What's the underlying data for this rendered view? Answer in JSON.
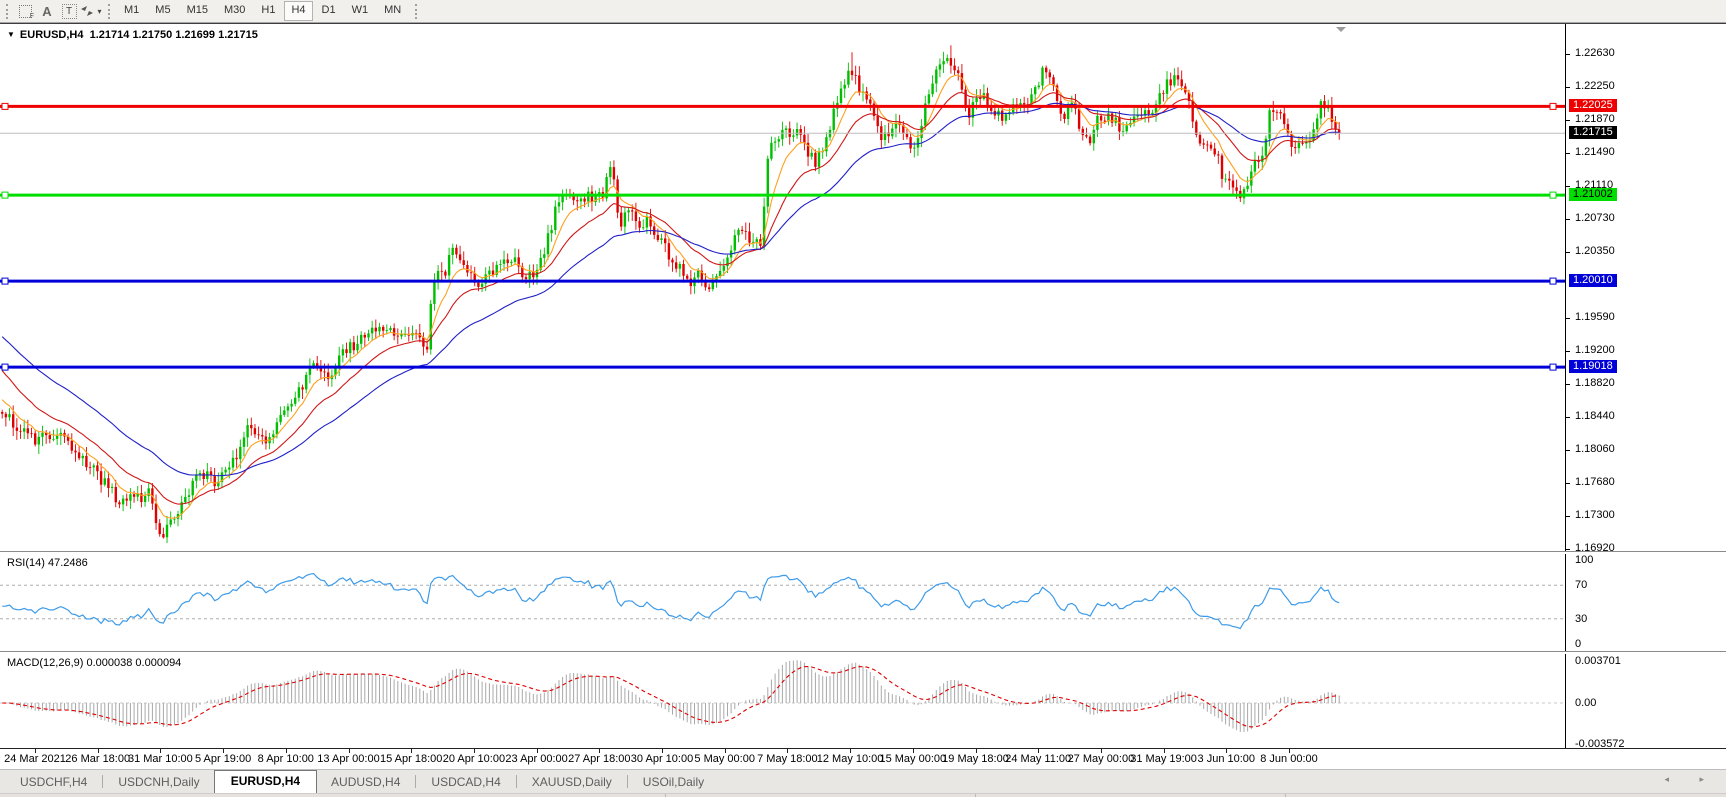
{
  "toolbar": {
    "icons": [
      "grid-f-icon",
      "font-icon",
      "text-label-icon",
      "cursor-mode-icon"
    ],
    "font_icon_glyph": "A",
    "text_icon_glyph": "T",
    "grid_icon_sub": "F",
    "timeframes": [
      "M1",
      "M5",
      "M15",
      "M30",
      "H1",
      "H4",
      "D1",
      "W1",
      "MN"
    ],
    "active_timeframe": "H4"
  },
  "header": {
    "symbol_period": "EURUSD,H4",
    "ohlc": "1.21714 1.21750 1.21699 1.21715",
    "dropdown_glyph": "▼"
  },
  "rsi": {
    "name": "RSI(14)",
    "value": "47.2486",
    "levels": [
      {
        "t": "100",
        "v": 100
      },
      {
        "t": "70",
        "v": 70
      },
      {
        "t": "30",
        "v": 30
      },
      {
        "t": "0",
        "v": 0
      }
    ],
    "line_color": "#3E9BE9"
  },
  "macd": {
    "name": "MACD(12,26,9)",
    "values": "0.000038 0.000094",
    "axis": [
      {
        "t": "0.003701",
        "v": 0.003701
      },
      {
        "t": "0.00",
        "v": 0
      },
      {
        "t": "-0.003572",
        "v": -0.003572
      }
    ],
    "histogram_color": "#A8A8A8",
    "signal_color": "#E00000"
  },
  "time_axis": [
    "24 Mar 2021",
    "26 Mar 18:00",
    "31 Mar 10:00",
    "5 Apr 19:00",
    "8 Apr 10:00",
    "13 Apr 00:00",
    "15 Apr 18:00",
    "20 Apr 10:00",
    "23 Apr 00:00",
    "27 Apr 18:00",
    "30 Apr 10:00",
    "5 May 00:00",
    "7 May 18:00",
    "12 May 10:00",
    "15 May 00:00",
    "19 May 18:00",
    "24 May 11:00",
    "27 May 00:00",
    "31 May 19:00",
    "3 Jun 10:00",
    "8 Jun 00:00"
  ],
  "tabs": [
    {
      "label": "USDCHF,H4",
      "active": false
    },
    {
      "label": "USDCNH,Daily",
      "active": false
    },
    {
      "label": "EURUSD,H4",
      "active": true
    },
    {
      "label": "AUDUSD,H4",
      "active": false
    },
    {
      "label": "USDCAD,H4",
      "active": false
    },
    {
      "label": "XAUUSD,Daily",
      "active": false
    },
    {
      "label": "USOil,Daily",
      "active": false
    }
  ],
  "tab_arrows": "◂ ▸",
  "chart_data": {
    "type": "candlestick",
    "symbol": "EURUSD",
    "timeframe": "H4",
    "current": {
      "open": 1.21714,
      "high": 1.2175,
      "low": 1.21699,
      "close": 1.21715
    },
    "bars": 366,
    "up_color": "#00BE00",
    "down_color": "#E00000",
    "ma_lines": [
      {
        "name": "ma-fast",
        "color": "#FFA01E",
        "period": 8,
        "seed": 1.1869
      },
      {
        "name": "ma-mid",
        "color": "#D01818",
        "period": 20,
        "seed": 1.1903
      },
      {
        "name": "ma-slow",
        "color": "#2020C8",
        "period": 45,
        "seed": 1.1941
      }
    ],
    "price_axis": {
      "max_price": 1.2263,
      "min_price": 1.1692,
      "labels": [
        "1.22630",
        "1.22250",
        "1.21870",
        "1.21490",
        "1.21110",
        "1.20730",
        "1.20350",
        "1.19590",
        "1.19200",
        "1.18820",
        "1.18440",
        "1.18060",
        "1.17680",
        "1.17300",
        "1.16920"
      ]
    },
    "hlines": [
      {
        "price": 1.22025,
        "label": "1.22025",
        "color": "#EE0000",
        "badge_bg": "#EE0000",
        "badge_fg": "#ffffff",
        "width": 3
      },
      {
        "price": 1.21002,
        "label": "1.21002",
        "color": "#00DD00",
        "badge_bg": "#00DD00",
        "badge_fg": "#000000",
        "width": 3
      },
      {
        "price": 1.2001,
        "label": "1.20010",
        "color": "#0000D8",
        "badge_bg": "#0000D8",
        "badge_fg": "#ffffff",
        "width": 3
      },
      {
        "price": 1.19018,
        "label": "1.19018",
        "color": "#0000D8",
        "badge_bg": "#0000D8",
        "badge_fg": "#ffffff",
        "width": 3
      }
    ],
    "current_line": {
      "price": 1.21715,
      "label": "1.21715",
      "color": "#BDBDBD",
      "badge_bg": "#000000",
      "badge_fg": "#ffffff"
    },
    "extremes": {
      "low_bar": 44,
      "low": 1.1704,
      "high_bar": 259,
      "high": 1.2273,
      "high2_bar": 232,
      "high2": 1.2265
    },
    "anchors": [
      [
        0,
        1.185
      ],
      [
        10,
        1.1815
      ],
      [
        16,
        1.1828
      ],
      [
        26,
        1.178
      ],
      [
        33,
        1.1745
      ],
      [
        41,
        1.1756
      ],
      [
        44,
        1.1706
      ],
      [
        50,
        1.1745
      ],
      [
        55,
        1.1782
      ],
      [
        59,
        1.1768
      ],
      [
        64,
        1.1795
      ],
      [
        68,
        1.1832
      ],
      [
        74,
        1.1818
      ],
      [
        78,
        1.1855
      ],
      [
        82,
        1.1878
      ],
      [
        86,
        1.1905
      ],
      [
        90,
        1.1886
      ],
      [
        94,
        1.192
      ],
      [
        98,
        1.1933
      ],
      [
        102,
        1.1948
      ],
      [
        108,
        1.1944
      ],
      [
        115,
        1.1934
      ],
      [
        117,
        1.1916
      ],
      [
        118,
        1.2005
      ],
      [
        121,
        1.2008
      ],
      [
        124,
        1.2036
      ],
      [
        128,
        1.2006
      ],
      [
        131,
        1.1994
      ],
      [
        135,
        1.2016
      ],
      [
        139,
        1.203
      ],
      [
        142,
        1.2014
      ],
      [
        146,
        1.2
      ],
      [
        149,
        1.204
      ],
      [
        152,
        1.2088
      ],
      [
        154,
        1.211
      ],
      [
        157,
        1.209
      ],
      [
        161,
        1.2098
      ],
      [
        165,
        1.2102
      ],
      [
        167,
        1.2142
      ],
      [
        169,
        1.2062
      ],
      [
        172,
        1.2085
      ],
      [
        175,
        1.2065
      ],
      [
        177,
        1.2072
      ],
      [
        182,
        1.2035
      ],
      [
        186,
        1.2012
      ],
      [
        188,
        1.2
      ],
      [
        191,
        1.2008
      ],
      [
        194,
        1.1996
      ],
      [
        197,
        1.2012
      ],
      [
        201,
        1.205
      ],
      [
        203,
        1.2063
      ],
      [
        205,
        1.2046
      ],
      [
        208,
        1.2042
      ],
      [
        210,
        1.2158
      ],
      [
        213,
        1.217
      ],
      [
        217,
        1.2175
      ],
      [
        221,
        1.215
      ],
      [
        223,
        1.2136
      ],
      [
        227,
        1.218
      ],
      [
        229,
        1.2218
      ],
      [
        232,
        1.224
      ],
      [
        235,
        1.2224
      ],
      [
        238,
        1.2196
      ],
      [
        241,
        1.2162
      ],
      [
        243,
        1.2175
      ],
      [
        246,
        1.2186
      ],
      [
        249,
        1.215
      ],
      [
        252,
        1.219
      ],
      [
        254,
        1.2224
      ],
      [
        257,
        1.225
      ],
      [
        259,
        1.2262
      ],
      [
        262,
        1.2236
      ],
      [
        264,
        1.2192
      ],
      [
        266,
        1.2205
      ],
      [
        269,
        1.2215
      ],
      [
        272,
        1.2196
      ],
      [
        274,
        1.2186
      ],
      [
        277,
        1.2204
      ],
      [
        281,
        1.221
      ],
      [
        285,
        1.2244
      ],
      [
        287,
        1.223
      ],
      [
        290,
        1.219
      ],
      [
        293,
        1.2205
      ],
      [
        295,
        1.218
      ],
      [
        298,
        1.2166
      ],
      [
        300,
        1.219
      ],
      [
        304,
        1.219
      ],
      [
        306,
        1.2172
      ],
      [
        309,
        1.2186
      ],
      [
        312,
        1.2196
      ],
      [
        315,
        1.22
      ],
      [
        318,
        1.2224
      ],
      [
        321,
        1.2236
      ],
      [
        324,
        1.222
      ],
      [
        326,
        1.2176
      ],
      [
        329,
        1.2156
      ],
      [
        332,
        1.215
      ],
      [
        334,
        1.2122
      ],
      [
        337,
        1.21
      ],
      [
        340,
        1.2106
      ],
      [
        342,
        1.213
      ],
      [
        345,
        1.2146
      ],
      [
        347,
        1.2205
      ],
      [
        350,
        1.2186
      ],
      [
        353,
        1.216
      ],
      [
        356,
        1.2156
      ],
      [
        358,
        1.2166
      ],
      [
        361,
        1.2214
      ],
      [
        363,
        1.2196
      ],
      [
        365,
        1.21715
      ]
    ]
  }
}
